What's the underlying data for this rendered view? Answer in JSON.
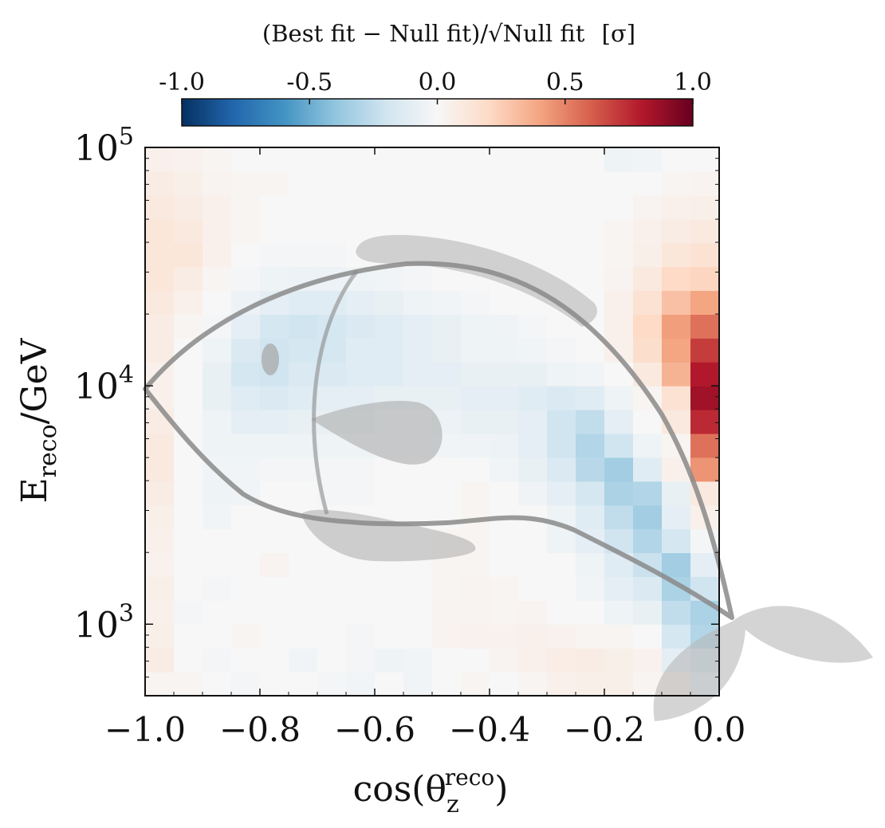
{
  "chart_data": {
    "type": "heatmap",
    "title": "",
    "colorbar": {
      "label": "(Best fit − Null fit)/√Null fit",
      "unit": "[σ]",
      "range": [
        -1.0,
        1.0
      ],
      "ticks": [
        "-1.0",
        "-0.5",
        "0.0",
        "0.5",
        "1.0"
      ],
      "colormap": "RdBu_r",
      "colors": [
        "#053061",
        "#2166ac",
        "#4393c3",
        "#92c5de",
        "#d1e5f0",
        "#f7f7f7",
        "#fddbc7",
        "#f4a582",
        "#d6604d",
        "#b2182b",
        "#67001f"
      ]
    },
    "xaxis": {
      "label": "cos(θ",
      "label_sub": "z",
      "label_sup": "reco",
      "label_close": ")",
      "range": [
        -1.0,
        0.0
      ],
      "bins": 20,
      "tick_values": [
        -1.0,
        -0.8,
        -0.6,
        -0.4,
        -0.2,
        0.0
      ],
      "tick_labels": [
        "−1.0",
        "−0.8",
        "−0.6",
        "−0.4",
        "−0.2",
        "0.0"
      ]
    },
    "yaxis": {
      "label": "E",
      "label_sub": "reco",
      "label_suffix": "/GeV",
      "scale": "log",
      "range_log10": [
        2.7,
        5.0
      ],
      "bins": 23,
      "ticks": [
        {
          "log10": 3,
          "base": "10",
          "exp": "3"
        },
        {
          "log10": 4,
          "base": "10",
          "exp": "4"
        },
        {
          "log10": 5,
          "base": "10",
          "exp": "5"
        }
      ]
    },
    "overlay": "whale silhouette outline",
    "rows_low_to_high_energy": [
      [
        0.02,
        0.02,
        0.0,
        -0.02,
        0.0,
        0.0,
        -0.02,
        -0.03,
        0.0,
        -0.03,
        0.0,
        0.02,
        0.0,
        0.02,
        0.05,
        0.06,
        0.06,
        0.02,
        0.05,
        -0.08
      ],
      [
        0.08,
        0.0,
        -0.02,
        0.0,
        0.0,
        -0.03,
        0.0,
        -0.02,
        -0.05,
        -0.03,
        0.0,
        0.0,
        0.03,
        0.05,
        0.07,
        0.08,
        0.06,
        0.04,
        -0.1,
        -0.18
      ],
      [
        0.06,
        0.0,
        0.0,
        0.02,
        0.0,
        0.0,
        0.0,
        -0.02,
        0.0,
        0.0,
        0.03,
        0.04,
        0.04,
        0.05,
        0.04,
        0.02,
        0.02,
        0.0,
        -0.18,
        -0.3
      ],
      [
        0.05,
        -0.02,
        0.0,
        0.0,
        0.0,
        0.0,
        0.0,
        0.0,
        0.0,
        0.0,
        0.03,
        0.03,
        0.02,
        0.03,
        0.0,
        0.0,
        -0.05,
        -0.08,
        -0.25,
        -0.32
      ],
      [
        0.06,
        0.0,
        -0.02,
        0.0,
        0.0,
        0.0,
        0.0,
        0.0,
        0.0,
        0.0,
        0.02,
        0.03,
        0.02,
        0.0,
        0.0,
        -0.03,
        -0.1,
        -0.15,
        -0.32,
        -0.2
      ],
      [
        0.04,
        0.0,
        0.0,
        0.0,
        0.03,
        0.0,
        0.0,
        0.0,
        0.0,
        0.0,
        0.02,
        0.02,
        0.0,
        0.0,
        0.0,
        -0.05,
        -0.12,
        -0.22,
        -0.35,
        -0.1
      ],
      [
        0.05,
        0.0,
        0.0,
        0.0,
        0.0,
        0.0,
        0.0,
        0.0,
        0.0,
        0.0,
        0.02,
        0.02,
        0.0,
        0.0,
        -0.05,
        -0.1,
        -0.2,
        -0.3,
        -0.18,
        -0.02
      ],
      [
        0.06,
        0.0,
        -0.03,
        0.0,
        0.0,
        0.0,
        0.0,
        0.0,
        0.0,
        0.0,
        0.0,
        0.02,
        0.0,
        0.0,
        -0.05,
        -0.12,
        -0.25,
        -0.35,
        -0.1,
        0.05
      ],
      [
        0.08,
        0.0,
        -0.05,
        -0.03,
        0.0,
        0.0,
        -0.02,
        -0.02,
        0.0,
        0.0,
        0.0,
        0.02,
        0.0,
        -0.04,
        -0.1,
        -0.18,
        -0.32,
        -0.3,
        -0.08,
        0.1
      ],
      [
        0.1,
        0.0,
        -0.03,
        -0.03,
        -0.02,
        -0.02,
        -0.02,
        -0.02,
        0.0,
        0.0,
        0.0,
        0.0,
        -0.03,
        -0.08,
        -0.15,
        -0.28,
        -0.35,
        -0.12,
        0.05,
        0.45
      ],
      [
        0.1,
        0.0,
        -0.05,
        -0.05,
        -0.05,
        -0.05,
        -0.05,
        -0.05,
        -0.03,
        -0.03,
        -0.03,
        -0.04,
        -0.06,
        -0.1,
        -0.2,
        -0.3,
        -0.2,
        -0.05,
        0.02,
        0.55
      ],
      [
        0.08,
        0.0,
        -0.05,
        -0.1,
        -0.1,
        -0.08,
        -0.08,
        -0.08,
        -0.05,
        -0.05,
        -0.06,
        -0.08,
        -0.08,
        -0.1,
        -0.2,
        -0.25,
        -0.1,
        0.0,
        0.1,
        0.75
      ],
      [
        0.05,
        0.0,
        -0.08,
        -0.12,
        -0.15,
        -0.12,
        -0.1,
        -0.1,
        -0.08,
        -0.08,
        -0.08,
        -0.1,
        -0.1,
        -0.12,
        -0.15,
        -0.12,
        -0.05,
        0.02,
        0.15,
        0.85
      ],
      [
        0.05,
        0.0,
        -0.08,
        -0.18,
        -0.2,
        -0.15,
        -0.15,
        -0.12,
        -0.12,
        -0.1,
        -0.1,
        -0.08,
        -0.08,
        -0.08,
        -0.05,
        -0.03,
        0.0,
        0.1,
        0.35,
        0.8
      ],
      [
        0.08,
        0.0,
        -0.05,
        -0.15,
        -0.2,
        -0.18,
        -0.18,
        -0.12,
        -0.12,
        -0.1,
        -0.08,
        -0.05,
        -0.05,
        -0.03,
        -0.02,
        0.0,
        0.05,
        0.18,
        0.4,
        0.7
      ],
      [
        0.08,
        0.02,
        -0.02,
        -0.1,
        -0.18,
        -0.2,
        -0.18,
        -0.15,
        -0.12,
        -0.1,
        -0.08,
        -0.05,
        -0.04,
        -0.02,
        0.0,
        0.0,
        0.05,
        0.2,
        0.42,
        0.55
      ],
      [
        0.1,
        0.05,
        0.0,
        -0.06,
        -0.1,
        -0.12,
        -0.12,
        -0.1,
        -0.08,
        -0.05,
        -0.03,
        -0.02,
        0.0,
        0.0,
        0.0,
        0.0,
        0.05,
        0.15,
        0.3,
        0.4
      ],
      [
        0.12,
        0.08,
        0.02,
        -0.02,
        -0.05,
        -0.06,
        -0.06,
        -0.05,
        -0.03,
        -0.02,
        0.0,
        0.0,
        0.0,
        0.0,
        0.0,
        0.0,
        0.03,
        0.1,
        0.2,
        0.22
      ],
      [
        0.12,
        0.12,
        0.05,
        0.0,
        -0.02,
        -0.02,
        -0.02,
        0.0,
        0.0,
        0.0,
        0.0,
        0.0,
        0.0,
        0.0,
        0.0,
        0.0,
        0.02,
        0.06,
        0.12,
        0.15
      ],
      [
        0.12,
        0.1,
        0.05,
        0.02,
        0.0,
        0.0,
        0.0,
        0.0,
        0.0,
        0.0,
        0.0,
        0.0,
        0.0,
        0.0,
        0.0,
        0.0,
        0.02,
        0.05,
        0.08,
        0.1
      ],
      [
        0.1,
        0.08,
        0.05,
        0.02,
        0.0,
        0.0,
        0.0,
        0.0,
        0.0,
        0.0,
        0.0,
        0.0,
        0.0,
        0.0,
        0.0,
        0.0,
        0.0,
        0.03,
        0.05,
        0.06
      ],
      [
        0.08,
        0.06,
        0.03,
        0.02,
        0.02,
        0.0,
        0.0,
        0.0,
        0.0,
        0.0,
        0.0,
        0.0,
        0.0,
        0.0,
        0.0,
        0.0,
        0.0,
        0.0,
        0.02,
        0.03
      ],
      [
        0.05,
        0.04,
        0.02,
        0.0,
        0.0,
        0.0,
        0.0,
        0.0,
        0.0,
        0.0,
        0.0,
        0.0,
        0.0,
        0.0,
        0.0,
        0.0,
        -0.05,
        -0.03,
        0.0,
        0.0
      ]
    ]
  }
}
